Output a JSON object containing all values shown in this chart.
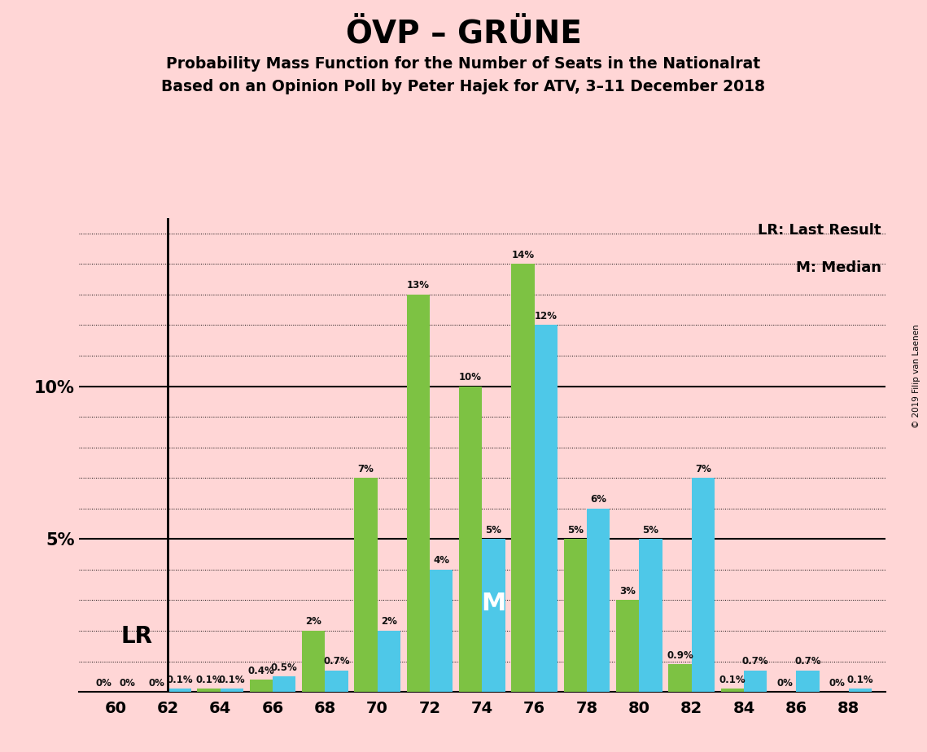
{
  "title": "ÖVP – GRÜNE",
  "subtitle1": "Probability Mass Function for the Number of Seats in the Nationalrat",
  "subtitle2": "Based on an Opinion Poll by Peter Hajek for ATV, 3–11 December 2018",
  "background_color": "#ffd6d6",
  "seats": [
    60,
    62,
    64,
    66,
    68,
    70,
    72,
    74,
    76,
    78,
    80,
    82,
    84,
    86,
    88
  ],
  "green_values": [
    0.0,
    0.0,
    0.1,
    0.4,
    2.0,
    7.0,
    13.0,
    10.0,
    14.0,
    5.0,
    3.0,
    0.9,
    0.1,
    0.0,
    0.0
  ],
  "blue_values": [
    0.0,
    0.1,
    0.1,
    0.5,
    0.7,
    2.0,
    4.0,
    5.0,
    12.0,
    6.0,
    5.0,
    7.0,
    0.7,
    0.7,
    0.1
  ],
  "green_color": "#7dc243",
  "blue_color": "#4ec8e8",
  "ylim": [
    0,
    15.5
  ],
  "LR_seat": 62,
  "M_seat": 74,
  "copyright_text": "© 2019 Filip van Laenen",
  "legend_LR": "LR: Last Result",
  "legend_M": "M: Median",
  "white_color": "#ffffff"
}
